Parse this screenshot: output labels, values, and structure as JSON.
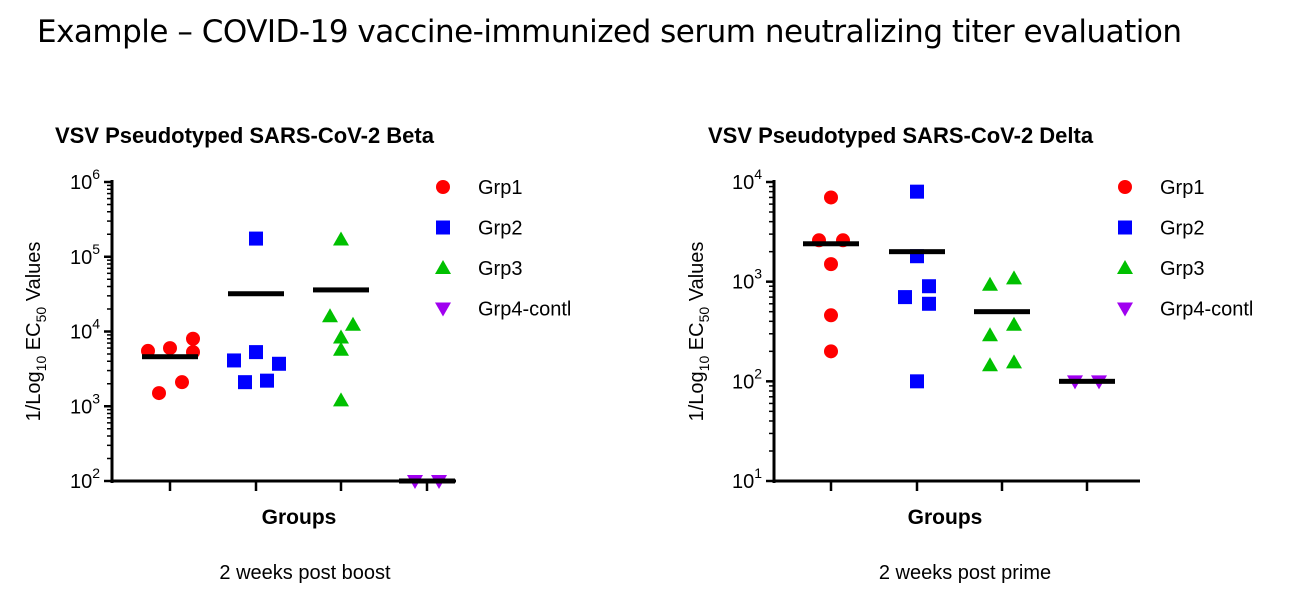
{
  "page_title": "Example – COVID-19 vaccine-immunized serum neutralizing titer evaluation",
  "chart_data": [
    {
      "type": "scatter",
      "title": "VSV Pseudotyped SARS-CoV-2 Beta",
      "xlabel": "Groups",
      "ylabel": {
        "prefix": "1/Log",
        "sub1": "10",
        "mid": " EC",
        "sub2": "50",
        "suffix": " Values"
      },
      "caption": "2 weeks post boost",
      "yscale": "log",
      "ylim": [
        100,
        1000000
      ],
      "yticks": [
        {
          "base": "10",
          "exp": "2"
        },
        {
          "base": "10",
          "exp": "3"
        },
        {
          "base": "10",
          "exp": "4"
        },
        {
          "base": "10",
          "exp": "5"
        },
        {
          "base": "10",
          "exp": "6"
        }
      ],
      "legend_position": "right",
      "series": [
        {
          "name": "Grp1",
          "marker": "circle",
          "color": "#ff0000",
          "values": [
            5500,
            6000,
            8000,
            5300,
            2100,
            1500
          ],
          "line": 4600
        },
        {
          "name": "Grp2",
          "marker": "square",
          "color": "#0000ff",
          "values": [
            175000,
            5300,
            4100,
            3700,
            2100,
            2200
          ],
          "line": 32000
        },
        {
          "name": "Grp3",
          "marker": "triangle-up",
          "color": "#00c000",
          "values": [
            170000,
            16000,
            12300,
            8300,
            5700,
            1200
          ],
          "line": 36000
        },
        {
          "name": "Grp4-contl",
          "marker": "triangle-down",
          "color": "#a000f0",
          "values": [
            100,
            100
          ],
          "line": 100
        }
      ]
    },
    {
      "type": "scatter",
      "title": "VSV Pseudotyped SARS-CoV-2 Delta",
      "xlabel": "Groups",
      "ylabel": {
        "prefix": "1/Log",
        "sub1": "10",
        "mid": " EC",
        "sub2": "50",
        "suffix": " Values"
      },
      "caption": "2 weeks post prime",
      "yscale": "log",
      "ylim": [
        10,
        10000
      ],
      "yticks": [
        {
          "base": "10",
          "exp": "1"
        },
        {
          "base": "10",
          "exp": "2"
        },
        {
          "base": "10",
          "exp": "3"
        },
        {
          "base": "10",
          "exp": "4"
        }
      ],
      "legend_position": "right",
      "series": [
        {
          "name": "Grp1",
          "marker": "circle",
          "color": "#ff0000",
          "values": [
            7000,
            2600,
            2600,
            1500,
            460,
            200
          ],
          "line": 2400
        },
        {
          "name": "Grp2",
          "marker": "square",
          "color": "#0000ff",
          "values": [
            8000,
            1800,
            900,
            700,
            600,
            100
          ],
          "line": 2000
        },
        {
          "name": "Grp3",
          "marker": "triangle-up",
          "color": "#00c000",
          "values": [
            1080,
            930,
            370,
            290,
            155,
            145
          ],
          "line": 500
        },
        {
          "name": "Grp4-contl",
          "marker": "triangle-down",
          "color": "#a000f0",
          "values": [
            100,
            100
          ],
          "line": 100
        }
      ]
    }
  ]
}
